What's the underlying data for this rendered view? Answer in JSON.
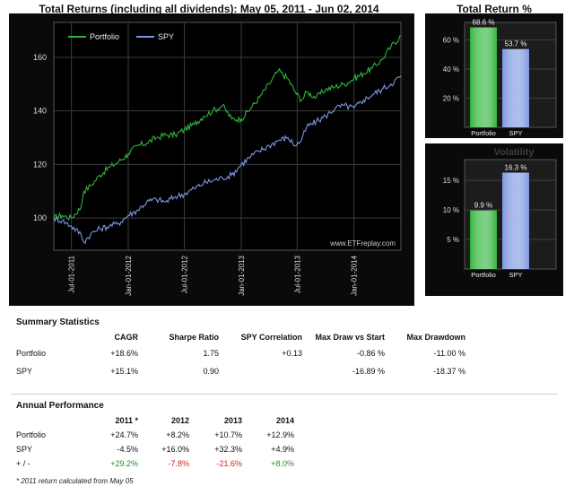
{
  "main_chart": {
    "title": "Total Returns (including all dividends): May 05, 2011 - Jun 02, 2014",
    "watermark": "www.ETFreplay.com"
  },
  "total_return": {
    "title": "Total Return %"
  },
  "volatility": {
    "title": "Volatility"
  },
  "colors": {
    "portfolio": "#2db33a",
    "spy": "#7b96e0",
    "gain": "#2a8a2a",
    "loss": "#cc2222",
    "panel_bg": "#0a0a0a"
  },
  "chart_data": [
    {
      "type": "line",
      "title": "Total Returns (including all dividends): May 05, 2011 - Jun 02, 2014",
      "xlabel": "",
      "ylabel": "",
      "ylim": [
        88,
        173
      ],
      "yticks": [
        100,
        120,
        140,
        160
      ],
      "xticks": [
        "Jul-01-2011",
        "Jan-01-2012",
        "Jul-01-2012",
        "Jan-01-2013",
        "Jul-01-2013",
        "Jan-01-2014"
      ],
      "xrange": [
        "2011-05-05",
        "2014-06-02"
      ],
      "legend": "top-left",
      "grid": true,
      "series": [
        {
          "name": "Portfolio",
          "color": "#2db33a",
          "x": [
            "2011-05-05",
            "2011-06-01",
            "2011-07-01",
            "2011-08-01",
            "2011-08-10",
            "2011-09-01",
            "2011-10-01",
            "2011-11-01",
            "2011-12-01",
            "2012-01-01",
            "2012-02-01",
            "2012-03-01",
            "2012-04-01",
            "2012-05-01",
            "2012-06-01",
            "2012-07-01",
            "2012-08-01",
            "2012-09-01",
            "2012-10-01",
            "2012-11-01",
            "2012-12-01",
            "2013-01-01",
            "2013-02-01",
            "2013-03-01",
            "2013-04-01",
            "2013-05-01",
            "2013-06-01",
            "2013-06-25",
            "2013-07-15",
            "2013-08-01",
            "2013-09-01",
            "2013-10-01",
            "2013-11-01",
            "2013-12-01",
            "2014-01-01",
            "2014-02-01",
            "2014-03-01",
            "2014-04-01",
            "2014-05-01",
            "2014-06-02"
          ],
          "y": [
            100,
            101,
            100,
            104,
            110,
            112,
            116,
            119,
            121,
            124,
            127,
            128,
            130,
            131,
            131,
            133,
            135,
            138,
            140,
            142,
            137,
            137,
            141,
            145,
            150,
            155,
            152,
            147,
            144,
            147,
            145,
            148,
            149,
            150,
            152,
            154,
            156,
            159,
            164,
            168
          ]
        },
        {
          "name": "SPY",
          "color": "#7b96e0",
          "x": [
            "2011-05-05",
            "2011-06-01",
            "2011-07-01",
            "2011-08-01",
            "2011-08-10",
            "2011-09-01",
            "2011-10-01",
            "2011-11-01",
            "2011-12-01",
            "2012-01-01",
            "2012-02-01",
            "2012-03-01",
            "2012-04-01",
            "2012-05-01",
            "2012-06-01",
            "2012-07-01",
            "2012-08-01",
            "2012-09-01",
            "2012-10-01",
            "2012-11-01",
            "2012-12-01",
            "2013-01-01",
            "2013-02-01",
            "2013-03-01",
            "2013-04-01",
            "2013-05-01",
            "2013-06-01",
            "2013-06-25",
            "2013-07-15",
            "2013-08-01",
            "2013-09-01",
            "2013-10-01",
            "2013-11-01",
            "2013-12-01",
            "2014-01-01",
            "2014-02-01",
            "2014-03-01",
            "2014-04-01",
            "2014-05-01",
            "2014-06-02"
          ],
          "y": [
            100,
            99,
            97,
            94,
            91,
            94,
            96,
            97,
            98,
            101,
            103,
            106,
            107,
            106,
            108,
            109,
            111,
            113,
            114,
            115,
            116,
            120,
            123,
            125,
            127,
            129,
            130,
            127,
            129,
            134,
            136,
            138,
            141,
            142,
            141,
            144,
            146,
            148,
            150,
            153
          ]
        }
      ]
    },
    {
      "type": "bar",
      "title": "Total Return %",
      "categories": [
        "Portfolio",
        "SPY"
      ],
      "values": [
        68.6,
        53.7
      ],
      "value_labels": [
        "68.6 %",
        "53.7 %"
      ],
      "yticks": [
        "20 %",
        "40 %",
        "60 %"
      ],
      "ytick_values": [
        20,
        40,
        60
      ],
      "ylim": [
        0,
        72
      ],
      "colors": [
        "#2db33a",
        "#7b96e0"
      ]
    },
    {
      "type": "bar",
      "title": "Volatility",
      "categories": [
        "Portfolio",
        "SPY"
      ],
      "values": [
        9.9,
        16.3
      ],
      "value_labels": [
        "9.9 %",
        "16.3 %"
      ],
      "yticks": [
        "5 %",
        "10 %",
        "15 %"
      ],
      "ytick_values": [
        5,
        10,
        15
      ],
      "ylim": [
        0,
        18.5
      ],
      "colors": [
        "#2db33a",
        "#7b96e0"
      ]
    }
  ],
  "summary": {
    "title": "Summary Statistics",
    "headers": [
      "CAGR",
      "Sharpe Ratio",
      "SPY Correlation",
      "Max Draw vs Start",
      "Max Drawdown"
    ],
    "rows": [
      {
        "label": "Portfolio",
        "cagr": "+18.6%",
        "sharpe": "1.75",
        "corr": "+0.13",
        "maxdraw_start": "-0.86 %",
        "maxdd": "-11.00 %"
      },
      {
        "label": "SPY",
        "cagr": "+15.1%",
        "sharpe": "0.90",
        "corr": "",
        "maxdraw_start": "-16.89 %",
        "maxdd": "-18.37 %"
      }
    ]
  },
  "annual": {
    "title": "Annual Performance",
    "headers": [
      "2011 *",
      "2012",
      "2013",
      "2014"
    ],
    "rows": [
      {
        "label": "Portfolio",
        "values": [
          "+24.7%",
          "+8.2%",
          "+10.7%",
          "+12.9%"
        ]
      },
      {
        "label": "SPY",
        "values": [
          "-4.5%",
          "+16.0%",
          "+32.3%",
          "+4.9%"
        ]
      },
      {
        "label": "+ / -",
        "values": [
          "+29.2%",
          "-7.8%",
          "-21.6%",
          "+8.0%"
        ],
        "signs": [
          "pos",
          "neg",
          "neg",
          "pos"
        ]
      }
    ],
    "footnote": "* 2011 return calculated from May 05"
  }
}
